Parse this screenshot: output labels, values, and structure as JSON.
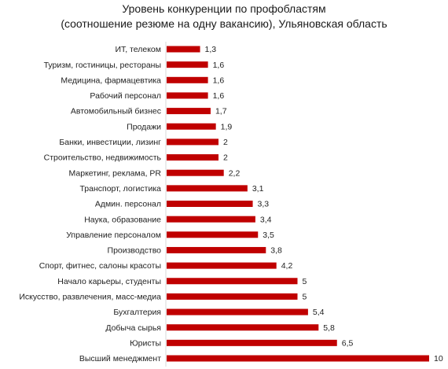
{
  "chart_data": {
    "type": "bar",
    "orientation": "horizontal",
    "title_lines": [
      "Уровень конкуренции по профобластям",
      "(соотношение резюме на одну вакансию), Ульяновская область"
    ],
    "categories": [
      "ИТ, телеком",
      "Туризм, гостиницы, рестораны",
      "Медицина, фармацевтика",
      "Рабочий персонал",
      "Автомобильный бизнес",
      "Продажи",
      "Банки, инвестиции, лизинг",
      "Строительство, недвижимость",
      "Маркетинг, реклама, PR",
      "Транспорт, логистика",
      "Админ. персонал",
      "Наука, образование",
      "Управление  персоналом",
      "Производство",
      "Спорт, фитнес, салоны красоты",
      "Начало карьеры, студенты",
      "Искусство, развлечения, масс-медиа",
      "Бухгалтерия",
      "Добыча сырья",
      "Юристы",
      "Высший менеджмент"
    ],
    "values": [
      1.3,
      1.6,
      1.6,
      1.6,
      1.7,
      1.9,
      2,
      2,
      2.2,
      3.1,
      3.3,
      3.4,
      3.5,
      3.8,
      4.2,
      5,
      5,
      5.4,
      5.8,
      6.5,
      10
    ],
    "value_labels": [
      "1,3",
      "1,6",
      "1,6",
      "1,6",
      "1,7",
      "1,9",
      "2",
      "2",
      "2,2",
      "3,1",
      "3,3",
      "3,4",
      "3,5",
      "3,8",
      "4,2",
      "5",
      "5",
      "5,4",
      "5,8",
      "6,5",
      "10"
    ],
    "xlim": [
      0,
      10
    ],
    "grid": false,
    "legend": "none",
    "bar_color": "#c00000"
  }
}
